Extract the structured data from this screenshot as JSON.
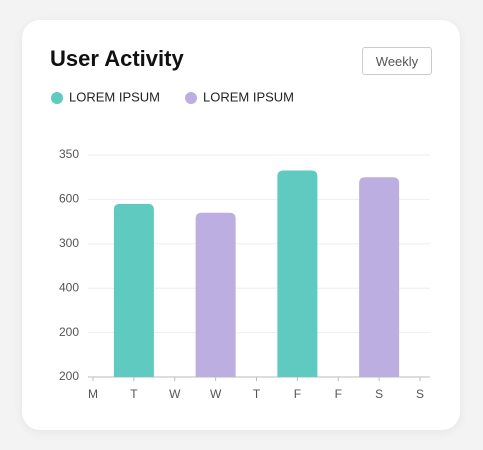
{
  "header": {
    "title": "User Activity",
    "button": "Weekly"
  },
  "chart_data": {
    "type": "bar",
    "categories": [
      "M",
      "T",
      "W",
      "W",
      "T",
      "F",
      "F",
      "S",
      "S"
    ],
    "series": [
      {
        "name": "LOREM IPSUM",
        "color": "#5ecac0",
        "values": [
          null,
          3.9,
          null,
          null,
          null,
          4.65,
          null,
          null,
          null
        ]
      },
      {
        "name": "LOREM IPSUM",
        "color": "#bcaee0",
        "values": [
          null,
          null,
          null,
          3.7,
          null,
          null,
          null,
          4.5,
          null
        ]
      }
    ],
    "ylim": [
      0,
      5
    ],
    "yticks": [
      {
        "value": 0,
        "label": "200"
      },
      {
        "value": 1,
        "label": "200"
      },
      {
        "value": 2,
        "label": "400"
      },
      {
        "value": 3,
        "label": "300"
      },
      {
        "value": 4,
        "label": "600"
      },
      {
        "value": 5,
        "label": "350"
      }
    ],
    "grid": true
  }
}
